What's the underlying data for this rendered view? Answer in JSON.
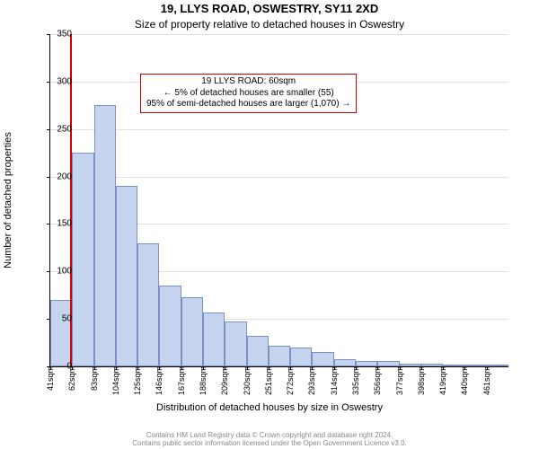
{
  "title_main": "19, LLYS ROAD, OSWESTRY, SY11 2XD",
  "title_sub": "Size of property relative to detached houses in Oswestry",
  "ylabel": "Number of detached properties",
  "xlabel": "Distribution of detached houses by size in Oswestry",
  "footer_line1": "Contains HM Land Registry data © Crown copyright and database right 2024.",
  "footer_line2": "Contains public sector information licensed under the Open Government Licence v3.0.",
  "annotation": {
    "line1": "19 LLYS ROAD: 60sqm",
    "line2": "← 5% of detached houses are smaller (55)",
    "line3": "95% of semi-detached houses are larger (1,070) →",
    "border_color": "#d40000",
    "bg_color": "#ffffff",
    "fontsize": 10
  },
  "chart": {
    "type": "histogram",
    "background_color": "#ffffff",
    "grid_color": "#e0e0e0",
    "axis_color": "#000000",
    "bar_fill": "#c6d4ef",
    "bar_edge": "#7a91c4",
    "marker_line_color": "#d40000",
    "marker_x_value": 60,
    "ylim": [
      0,
      350
    ],
    "ytick_step": 50,
    "ylabel_fontsize": 11,
    "xlabel_fontsize": 11,
    "xtick_fontsize": 9,
    "ytick_fontsize": 10,
    "title_fontsize_main": 13,
    "title_fontsize_sub": 12,
    "bar_width_sqm": 21,
    "x_labels": [
      "41sqm",
      "62sqm",
      "83sqm",
      "104sqm",
      "125sqm",
      "146sqm",
      "167sqm",
      "188sqm",
      "209sqm",
      "230sqm",
      "251sqm",
      "272sqm",
      "293sqm",
      "314sqm",
      "335sqm",
      "356sqm",
      "377sqm",
      "398sqm",
      "419sqm",
      "440sqm",
      "461sqm"
    ],
    "x_left_edges": [
      41,
      62,
      83,
      104,
      125,
      146,
      167,
      188,
      209,
      230,
      251,
      272,
      293,
      314,
      335,
      356,
      377,
      398,
      419,
      440,
      461
    ],
    "x_axis_min": 41,
    "x_axis_max": 482,
    "values": [
      70,
      225,
      275,
      190,
      130,
      85,
      73,
      57,
      47,
      32,
      22,
      20,
      15,
      8,
      6,
      6,
      3,
      3,
      2,
      2,
      1
    ]
  }
}
